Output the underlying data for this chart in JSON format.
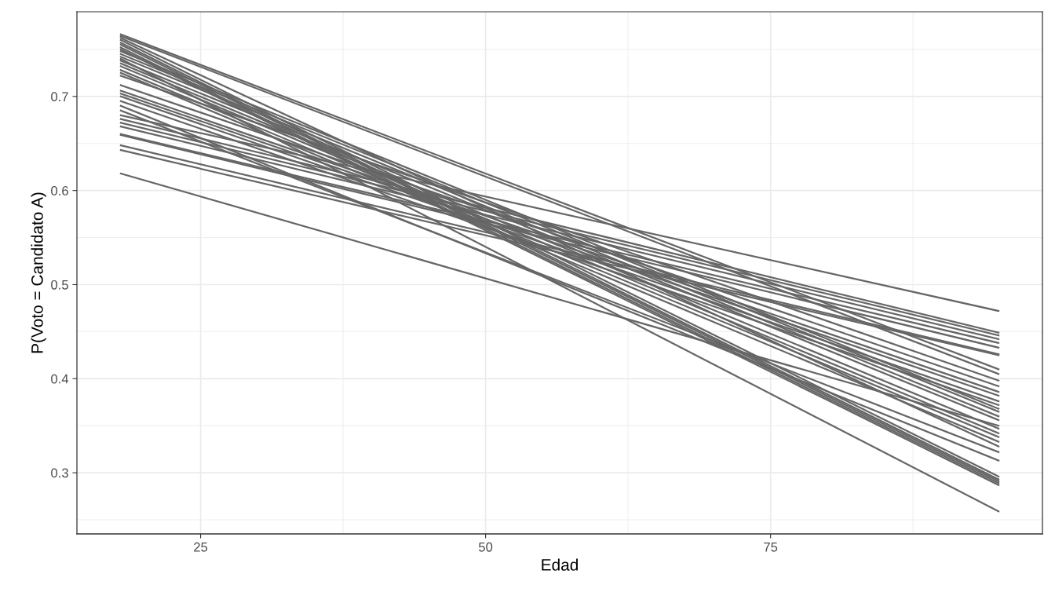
{
  "chart_data": {
    "type": "line",
    "xlabel": "Edad",
    "ylabel": "P(Voto = Candidato A)",
    "x": [
      18,
      95
    ],
    "xlim": [
      14.15,
      98.85
    ],
    "ylim": [
      0.235,
      0.79
    ],
    "xticks": [
      25,
      50,
      75
    ],
    "yticks": [
      0.3,
      0.4,
      0.5,
      0.6,
      0.7
    ],
    "grid": true,
    "legend": false,
    "marker": "none",
    "line_style": "solid",
    "series": [
      {
        "color": "#666666",
        "values": [
          0.618,
          0.35
        ]
      },
      {
        "color": "#666666",
        "values": [
          0.643,
          0.425
        ]
      },
      {
        "color": "#666666",
        "values": [
          0.648,
          0.426
        ]
      },
      {
        "color": "#666666",
        "values": [
          0.659,
          0.433
        ]
      },
      {
        "color": "#666666",
        "values": [
          0.66,
          0.438
        ]
      },
      {
        "color": "#666666",
        "values": [
          0.668,
          0.442
        ]
      },
      {
        "color": "#666666",
        "values": [
          0.672,
          0.446
        ]
      },
      {
        "color": "#666666",
        "values": [
          0.676,
          0.449
        ]
      },
      {
        "color": "#666666",
        "values": [
          0.68,
          0.472
        ]
      },
      {
        "color": "#666666",
        "values": [
          0.685,
          0.322
        ]
      },
      {
        "color": "#666666",
        "values": [
          0.69,
          0.313
        ]
      },
      {
        "color": "#666666",
        "values": [
          0.695,
          0.372
        ]
      },
      {
        "color": "#666666",
        "values": [
          0.7,
          0.376
        ]
      },
      {
        "color": "#666666",
        "values": [
          0.703,
          0.382
        ]
      },
      {
        "color": "#666666",
        "values": [
          0.706,
          0.386
        ]
      },
      {
        "color": "#666666",
        "values": [
          0.712,
          0.392
        ]
      },
      {
        "color": "#666666",
        "values": [
          0.722,
          0.398
        ]
      },
      {
        "color": "#666666",
        "values": [
          0.725,
          0.333
        ]
      },
      {
        "color": "#666666",
        "values": [
          0.728,
          0.338
        ]
      },
      {
        "color": "#666666",
        "values": [
          0.732,
          0.342
        ]
      },
      {
        "color": "#666666",
        "values": [
          0.735,
          0.347
        ]
      },
      {
        "color": "#666666",
        "values": [
          0.738,
          0.356
        ]
      },
      {
        "color": "#666666",
        "values": [
          0.742,
          0.36
        ]
      },
      {
        "color": "#666666",
        "values": [
          0.745,
          0.365
        ]
      },
      {
        "color": "#666666",
        "values": [
          0.748,
          0.368
        ]
      },
      {
        "color": "#666666",
        "values": [
          0.75,
          0.287
        ]
      },
      {
        "color": "#666666",
        "values": [
          0.752,
          0.289
        ]
      },
      {
        "color": "#666666",
        "values": [
          0.755,
          0.291
        ]
      },
      {
        "color": "#666666",
        "values": [
          0.757,
          0.293
        ]
      },
      {
        "color": "#666666",
        "values": [
          0.76,
          0.296
        ]
      },
      {
        "color": "#666666",
        "values": [
          0.762,
          0.328
        ]
      },
      {
        "color": "#666666",
        "values": [
          0.764,
          0.405
        ]
      },
      {
        "color": "#666666",
        "values": [
          0.766,
          0.41
        ]
      },
      {
        "color": "#666666",
        "values": [
          0.74,
          0.259
        ]
      }
    ]
  }
}
